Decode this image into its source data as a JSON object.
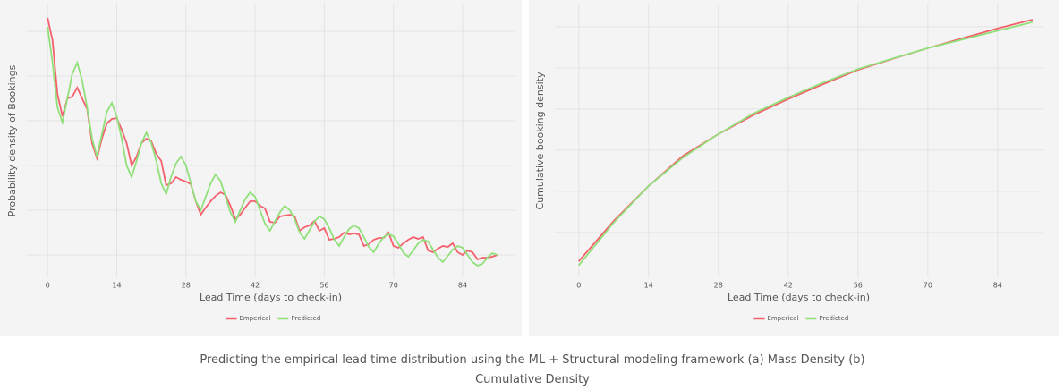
{
  "chart_data": [
    {
      "type": "line",
      "x_label": "Lead Time (days to check-in)",
      "y_label": "Probability density of Bookings",
      "x": [
        0,
        1,
        2,
        3,
        4,
        5,
        6,
        7,
        8,
        9,
        10,
        11,
        12,
        13,
        14,
        15,
        16,
        17,
        18,
        19,
        20,
        21,
        22,
        23,
        24,
        25,
        26,
        27,
        28,
        29,
        30,
        31,
        32,
        33,
        34,
        35,
        36,
        37,
        38,
        39,
        40,
        41,
        42,
        43,
        44,
        45,
        46,
        47,
        48,
        49,
        50,
        51,
        52,
        53,
        54,
        55,
        56,
        57,
        58,
        59,
        60,
        61,
        62,
        63,
        64,
        65,
        66,
        67,
        68,
        69,
        70,
        71,
        72,
        73,
        74,
        75,
        76,
        77,
        78,
        79,
        80,
        81,
        82,
        83,
        84,
        85,
        86,
        87,
        88,
        89,
        90,
        91
      ],
      "xlim": [
        -4.2,
        94.5
      ],
      "xticks": [
        0,
        14,
        28,
        42,
        56,
        70,
        84
      ],
      "ylim": [
        -0.5,
        5.6
      ],
      "yticks": [
        0,
        1,
        2,
        3,
        4,
        5
      ],
      "grid": true,
      "legend": "bottom",
      "series": [
        {
          "name": "Emperical",
          "color": "#f4606c",
          "values": [
            5.3,
            4.8,
            3.6,
            3.1,
            3.5,
            3.54,
            3.74,
            3.5,
            3.26,
            2.5,
            2.16,
            2.6,
            2.94,
            3.04,
            3.06,
            2.8,
            2.5,
            2.0,
            2.2,
            2.5,
            2.6,
            2.54,
            2.26,
            2.1,
            1.56,
            1.6,
            1.74,
            1.68,
            1.64,
            1.58,
            1.2,
            0.9,
            1.06,
            1.2,
            1.32,
            1.4,
            1.34,
            1.1,
            0.8,
            0.9,
            1.06,
            1.2,
            1.2,
            1.1,
            1.04,
            0.74,
            0.72,
            0.86,
            0.88,
            0.9,
            0.86,
            0.54,
            0.62,
            0.66,
            0.76,
            0.54,
            0.6,
            0.34,
            0.36,
            0.4,
            0.5,
            0.46,
            0.48,
            0.46,
            0.2,
            0.24,
            0.34,
            0.38,
            0.38,
            0.5,
            0.2,
            0.16,
            0.26,
            0.34,
            0.4,
            0.36,
            0.4,
            0.1,
            0.06,
            0.14,
            0.2,
            0.18,
            0.26,
            0.06,
            0,
            0.1,
            0.06,
            -0.1,
            -0.06,
            -0.06,
            -0.04,
            0
          ]
        },
        {
          "name": "Predicted",
          "color": "#90e07a",
          "values": [
            5.1,
            4.3,
            3.3,
            2.96,
            3.5,
            4.05,
            4.3,
            3.9,
            3.3,
            2.6,
            2.2,
            2.7,
            3.2,
            3.4,
            3.1,
            2.6,
            2.0,
            1.74,
            2.1,
            2.5,
            2.74,
            2.5,
            2.1,
            1.6,
            1.36,
            1.75,
            2.05,
            2.2,
            2.0,
            1.6,
            1.2,
            1.0,
            1.3,
            1.6,
            1.8,
            1.65,
            1.3,
            0.95,
            0.74,
            1.0,
            1.25,
            1.4,
            1.3,
            1.0,
            0.7,
            0.54,
            0.75,
            0.95,
            1.1,
            1.0,
            0.8,
            0.5,
            0.36,
            0.55,
            0.75,
            0.86,
            0.8,
            0.6,
            0.35,
            0.2,
            0.4,
            0.58,
            0.66,
            0.6,
            0.4,
            0.18,
            0.06,
            0.25,
            0.4,
            0.46,
            0.42,
            0.25,
            0.05,
            -0.04,
            0.1,
            0.26,
            0.34,
            0.3,
            0.12,
            -0.06,
            -0.16,
            -0.02,
            0.12,
            0.2,
            0.16,
            0,
            -0.16,
            -0.24,
            -0.2,
            -0.06,
            0.04,
            0
          ]
        }
      ]
    },
    {
      "type": "line",
      "x_label": "Lead Time (days to check-in)",
      "y_label": "Cumulative booking density",
      "x": [
        0,
        7,
        14,
        21,
        28,
        35,
        42,
        49,
        56,
        63,
        70,
        77,
        84,
        91
      ],
      "xlim": [
        -4.8,
        93
      ],
      "xticks": [
        0,
        14,
        28,
        42,
        56,
        70,
        84
      ],
      "ylim": [
        -1.09,
        5.54
      ],
      "yticks": [
        0,
        1,
        2,
        3,
        4,
        5
      ],
      "grid": true,
      "legend": "bottom",
      "series": [
        {
          "name": "Emperical",
          "color": "#f4606c",
          "values": [
            -0.7,
            0.28,
            1.13,
            1.87,
            2.39,
            2.85,
            3.24,
            3.6,
            3.95,
            4.22,
            4.48,
            4.72,
            4.96,
            5.17
          ]
        },
        {
          "name": "Predicted",
          "color": "#90e07a",
          "values": [
            -0.8,
            0.24,
            1.13,
            1.83,
            2.39,
            2.89,
            3.28,
            3.64,
            3.97,
            4.23,
            4.48,
            4.69,
            4.9,
            5.11
          ]
        }
      ]
    }
  ],
  "caption": "Predicting the empirical lead time distribution using the ML + Structural modeling framework (a) Mass Density (b) Cumulative Density"
}
